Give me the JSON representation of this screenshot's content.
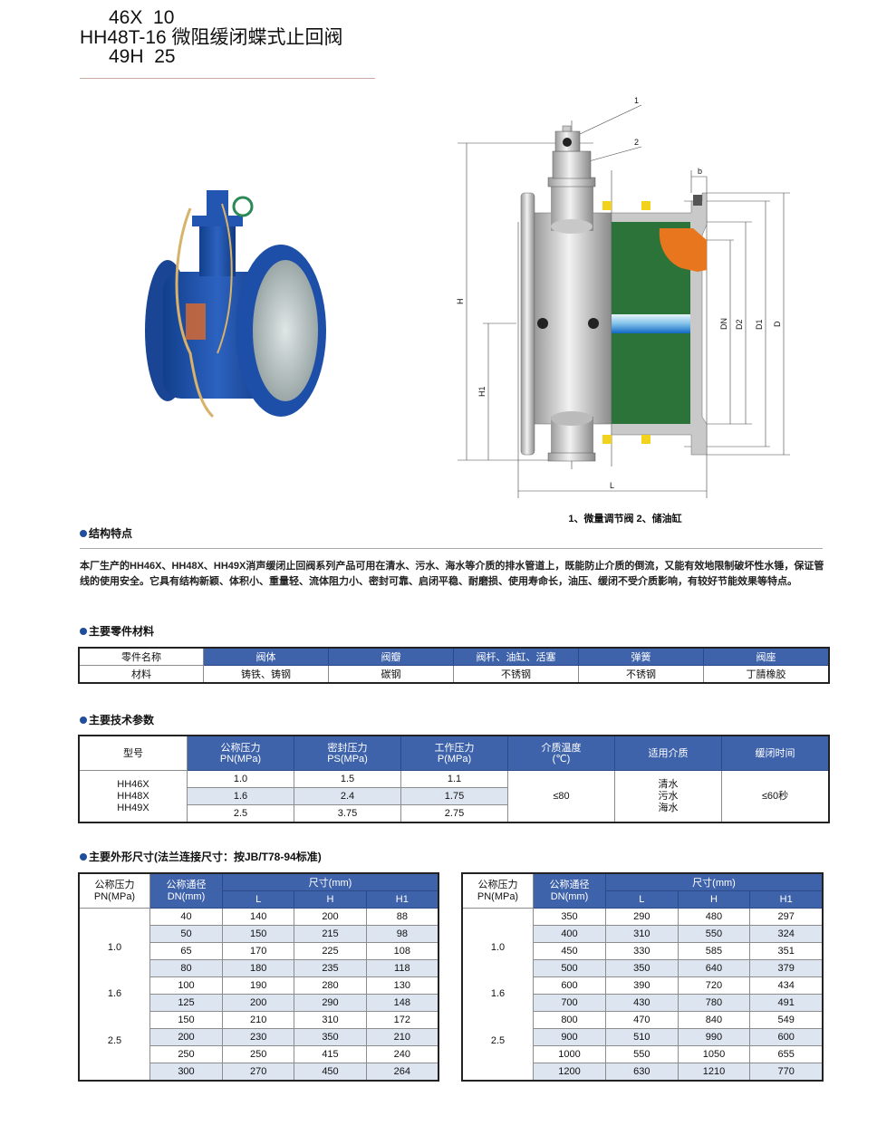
{
  "title": {
    "line1": "46X  10",
    "line2": "HH48T-16 微阻缓闭蝶式止回阀",
    "line3": "49H  25"
  },
  "diagram": {
    "callout_1": "1",
    "callout_2": "2",
    "label_H": "H",
    "label_H1": "H1",
    "label_L": "L",
    "label_b": "b",
    "label_DN": "DN",
    "label_D2": "D2",
    "label_D1": "D1",
    "label_D": "D",
    "caption": "1、微量调节阀 2、储油缸"
  },
  "sections": {
    "features": "结构特点",
    "materials": "主要零件材料",
    "params": "主要技术参数",
    "dimensions": "主要外形尺寸(法兰连接尺寸：按JB/T78-94标准)"
  },
  "description": "本厂生产的HH46X、HH48X、HH49X消声缓闭止回阀系列产品可用在清水、污水、海水等介质的排水管道上，既能防止介质的倒流，又能有效地限制破坏性水锤，保证管线的使用安全。它具有结构新颖、体积小、重量轻、流体阻力小、密封可靠、启闭平稳、耐磨损、使用寿命长，油压、缓闭不受介质影响，有较好节能效果等特点。",
  "materials_table": {
    "header": [
      "零件名称",
      "阀体",
      "阀瓣",
      "阀杆、油缸、活塞",
      "弹簧",
      "阀座"
    ],
    "row": [
      "材料",
      "铸铁、铸钢",
      "碳钢",
      "不锈钢",
      "不锈钢",
      "丁腈橡胶"
    ]
  },
  "params_table": {
    "header": [
      "型号",
      "公称压力\nPN(MPa)",
      "密封压力\nPS(MPa)",
      "工作压力\nP(MPa)",
      "介质温度\n(℃)",
      "适用介质",
      "缓闭时间"
    ],
    "models": "HH46X\nHH48X\nHH49X",
    "rows": [
      [
        "1.0",
        "1.5",
        "1.1"
      ],
      [
        "1.6",
        "2.4",
        "1.75"
      ],
      [
        "2.5",
        "3.75",
        "2.75"
      ]
    ],
    "temperature": "≤80",
    "media": "清水\n污水\n海水",
    "close_time": "≤60秒"
  },
  "dimension_tables": [
    {
      "header_pn": "公称压力\nPN(MPa)",
      "header_dn": "公称通径\nDN(mm)",
      "header_size": "尺寸(mm)",
      "sub_headers": [
        "L",
        "H",
        "H1"
      ],
      "pn_values": [
        "1.0",
        "1.6",
        "2.5"
      ],
      "rows": [
        [
          "40",
          "140",
          "200",
          "88"
        ],
        [
          "50",
          "150",
          "215",
          "98"
        ],
        [
          "65",
          "170",
          "225",
          "108"
        ],
        [
          "80",
          "180",
          "235",
          "118"
        ],
        [
          "100",
          "190",
          "280",
          "130"
        ],
        [
          "125",
          "200",
          "290",
          "148"
        ],
        [
          "150",
          "210",
          "310",
          "172"
        ],
        [
          "200",
          "230",
          "350",
          "210"
        ],
        [
          "250",
          "250",
          "415",
          "240"
        ],
        [
          "300",
          "270",
          "450",
          "264"
        ]
      ]
    },
    {
      "header_pn": "公称压力\nPN(MPa)",
      "header_dn": "公称通径\nDN(mm)",
      "header_size": "尺寸(mm)",
      "sub_headers": [
        "L",
        "H",
        "H1"
      ],
      "pn_values": [
        "1.0",
        "1.6",
        "2.5"
      ],
      "rows": [
        [
          "350",
          "290",
          "480",
          "297"
        ],
        [
          "400",
          "310",
          "550",
          "324"
        ],
        [
          "450",
          "330",
          "585",
          "351"
        ],
        [
          "500",
          "350",
          "640",
          "379"
        ],
        [
          "600",
          "390",
          "720",
          "434"
        ],
        [
          "700",
          "430",
          "780",
          "491"
        ],
        [
          "800",
          "470",
          "840",
          "549"
        ],
        [
          "900",
          "510",
          "990",
          "600"
        ],
        [
          "1000",
          "550",
          "1050",
          "655"
        ],
        [
          "1200",
          "630",
          "1210",
          "770"
        ]
      ]
    }
  ],
  "colors": {
    "header_blue": "#3f63ab",
    "row_alt": "#dde5f0",
    "valve_blue": "#1d4fa8",
    "section_green": "#2b7339",
    "seal_orange": "#e8761e"
  }
}
